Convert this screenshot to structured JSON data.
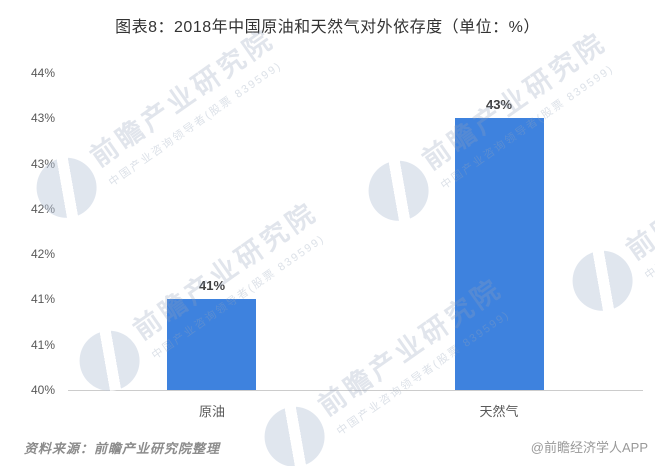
{
  "title": "图表8：2018年中国原油和天然气对外依存度（单位：%）",
  "chart_data": {
    "type": "bar",
    "title": "图表8：2018年中国原油和天然气对外依存度（单位：%）",
    "categories": [
      "原油",
      "天然气"
    ],
    "values": [
      41,
      43
    ],
    "data_labels": [
      "41%",
      "43%"
    ],
    "xlabel": "",
    "ylabel": "",
    "unit": "%",
    "ylim": [
      40,
      43.5
    ],
    "y_tick_step": 0.5,
    "y_tick_labels_top_to_bottom": [
      "44%",
      "43%",
      "43%",
      "42%",
      "42%",
      "41%",
      "41%",
      "40%"
    ],
    "grid": false,
    "legend": false,
    "bar_color": "#3E82DE"
  },
  "watermark": {
    "brand": "前瞻产业研究院",
    "subtitle": "中国产业咨询领导者(股票 839599)"
  },
  "footer": {
    "source": "资料来源：前瞻产业研究院整理",
    "credit": "@前瞻经济学人APP"
  },
  "colors": {
    "bar": "#3E82DE",
    "title_text": "#333333",
    "axis_text": "#595959",
    "data_label_text": "#404040",
    "axis_line": "#cccccc",
    "source_text": "#8c8c8c",
    "credit_text": "#999999",
    "background": "#ffffff"
  }
}
